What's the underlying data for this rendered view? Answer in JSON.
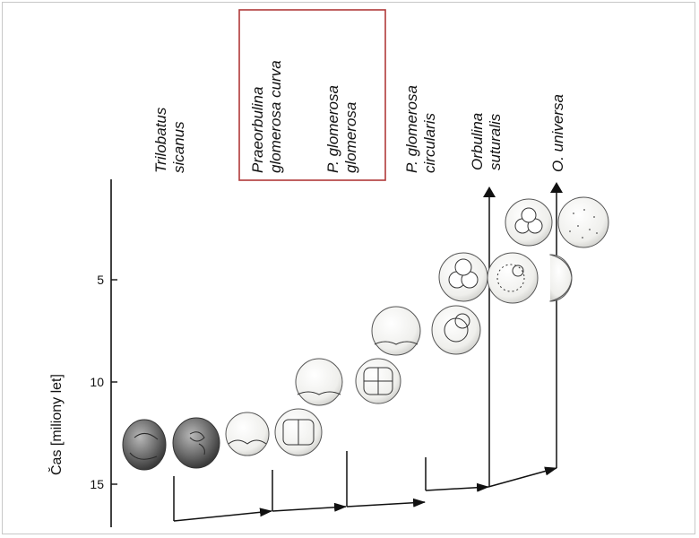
{
  "axis": {
    "label": "Čas [miliony let]",
    "ticks": [
      "5",
      "10",
      "15"
    ]
  },
  "species": [
    {
      "line1": "Trilobatus",
      "line2": "sicanus"
    },
    {
      "line1": "Praeorbulina",
      "line2": "glomerosa curva"
    },
    {
      "line1": "P. glomerosa",
      "line2": "glomerosa"
    },
    {
      "line1": "P. glomerosa",
      "line2": "circularis"
    },
    {
      "line1": "Orbulina",
      "line2": "suturalis"
    },
    {
      "line1": "O. universa",
      "line2": ""
    }
  ],
  "colors": {
    "highlight_box": "#b03a3a",
    "line": "#111111",
    "shell_dark": "#6a6a6a",
    "shell_light": "#f1f1ee"
  }
}
